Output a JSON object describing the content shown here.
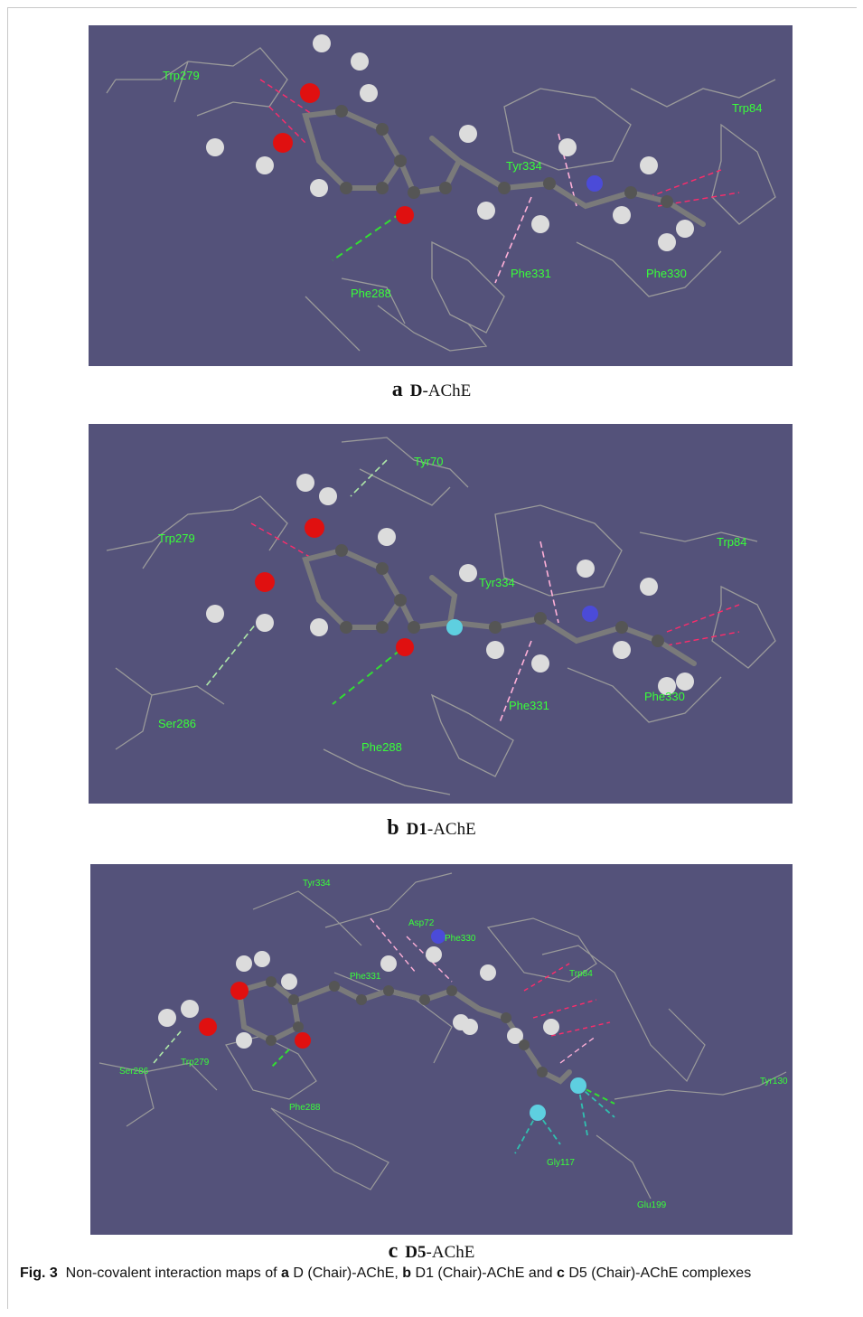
{
  "panels": [
    {
      "letter": "a",
      "molecule": "D",
      "suffix": "-AChE",
      "residues": [
        "Trp279",
        "Trp84",
        "Tyr334",
        "Phe331",
        "Phe330",
        "Phe288"
      ]
    },
    {
      "letter": "b",
      "molecule": "D1",
      "suffix": "-AChE",
      "residues": [
        "Tyr70",
        "Trp279",
        "Trp84",
        "Tyr334",
        "Phe331",
        "Phe330",
        "Ser286",
        "Phe288"
      ]
    },
    {
      "letter": "c",
      "molecule": "D5",
      "suffix": "-AChE",
      "residues": [
        "Tyr334",
        "Asp72",
        "Phe330",
        "Phe331",
        "Trp84",
        "Ser286",
        "Trp279",
        "Phe288",
        "Tyr130",
        "Gly117",
        "Glu199"
      ]
    }
  ],
  "figure_caption": {
    "label": "Fig. 3",
    "text_1": "Non-covalent interaction maps of ",
    "a": "a",
    "text_2": " D (Chair)-AChE, ",
    "b": "b",
    "text_3": " D1 (Chair)-AChE and ",
    "c": "c",
    "text_4": " D5 (Chair)-AChE complexes"
  }
}
